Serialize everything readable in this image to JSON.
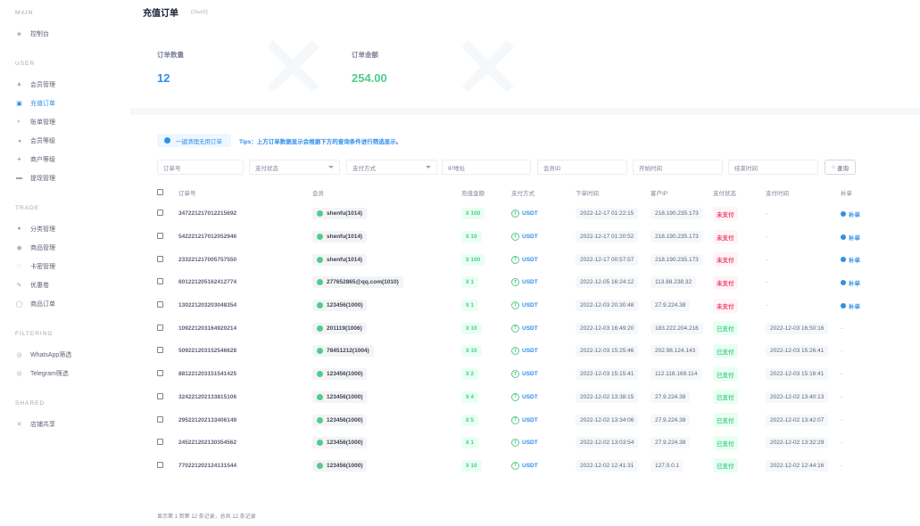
{
  "sidebar": {
    "sections": [
      {
        "title": "MAIN",
        "items": [
          {
            "label": "控制台",
            "icon": "dashboard-icon"
          }
        ]
      },
      {
        "title": "USER",
        "items": [
          {
            "label": "会员管理",
            "icon": "user-icon"
          },
          {
            "label": "充值订单",
            "icon": "wallet-icon",
            "active": true
          },
          {
            "label": "账单管理",
            "icon": "bill-icon"
          },
          {
            "label": "会员等级",
            "icon": "level-icon"
          },
          {
            "label": "商户等级",
            "icon": "merchant-icon"
          },
          {
            "label": "提现管理",
            "icon": "withdraw-icon"
          }
        ]
      },
      {
        "title": "TRADE",
        "items": [
          {
            "label": "分类管理",
            "icon": "category-icon"
          },
          {
            "label": "商品管理",
            "icon": "product-icon"
          },
          {
            "label": "卡密管理",
            "icon": "card-icon"
          },
          {
            "label": "优惠卷",
            "icon": "coupon-icon"
          },
          {
            "label": "商品订单",
            "icon": "order-icon"
          }
        ]
      },
      {
        "title": "FILTERING",
        "items": [
          {
            "label": "WhatsApp筛选",
            "icon": "filter-icon"
          },
          {
            "label": "Telegram筛选",
            "icon": "filter-icon"
          }
        ]
      },
      {
        "title": "SHARED",
        "items": [
          {
            "label": "店铺共享",
            "icon": "share-icon"
          }
        ]
      }
    ]
  },
  "header": {
    "title": "充值订单",
    "subtitle": "(⊙ω⊙)"
  },
  "stats": [
    {
      "label": "订单数量",
      "value": "12",
      "color": "#2f8fea"
    },
    {
      "label": "订单金额",
      "value": "254.00",
      "color": "#50cd89"
    }
  ],
  "toolbar": {
    "clear_button": "一键清理无用订单",
    "tips": "Tips：上方订单数据显示会根据下方的查询条件进行筛选显示。"
  },
  "filters": {
    "order_no": "订单号",
    "pay_status": "支付状态",
    "pay_method": "支付方式",
    "ip": "IP地址",
    "member_id": "会员ID",
    "start_time": "开始时间",
    "end_time": "结束时间",
    "query": "查询"
  },
  "table": {
    "headers": [
      "订单号",
      "会员",
      "充值金额",
      "支付方式",
      "下单时间",
      "客户IP",
      "支付状态",
      "支付时间",
      "补单"
    ],
    "rows": [
      {
        "order": "347221217012215692",
        "member": "shenfu(1014)",
        "amount": "¥ 100",
        "method": "USDT",
        "created": "2022-12-17 01:22:15",
        "ip": "218.190.235.173",
        "status": "未支付",
        "paid": false,
        "paid_time": "-",
        "repair": "补单"
      },
      {
        "order": "542221217012052946",
        "member": "shenfu(1014)",
        "amount": "¥ 10",
        "method": "USDT",
        "created": "2022-12-17 01:20:52",
        "ip": "218.190.235.173",
        "status": "未支付",
        "paid": false,
        "paid_time": "-",
        "repair": "补单"
      },
      {
        "order": "233221217005757550",
        "member": "shenfu(1014)",
        "amount": "¥ 100",
        "method": "USDT",
        "created": "2022-12-17 00:57:57",
        "ip": "218.190.235.173",
        "status": "未支付",
        "paid": false,
        "paid_time": "-",
        "repair": "补单"
      },
      {
        "order": "601221205162412774",
        "member": "277652865@qq.com(1010)",
        "amount": "¥ 1",
        "method": "USDT",
        "created": "2022-12-05 16:24:12",
        "ip": "113.88.238.32",
        "status": "未支付",
        "paid": false,
        "paid_time": "-",
        "repair": "补单"
      },
      {
        "order": "130221203203048354",
        "member": "123456(1000)",
        "amount": "¥ 1",
        "method": "USDT",
        "created": "2022-12-03 20:30:48",
        "ip": "27.9.224.38",
        "status": "未支付",
        "paid": false,
        "paid_time": "-",
        "repair": "补单"
      },
      {
        "order": "109221203164920214",
        "member": "201119(1006)",
        "amount": "¥ 10",
        "method": "USDT",
        "created": "2022-12-03 16:49:20",
        "ip": "183.222.204.216",
        "status": "已支付",
        "paid": true,
        "paid_time": "2022-12-03 16:50:16",
        "repair": "-"
      },
      {
        "order": "509221203152546628",
        "member": "78451212(1004)",
        "amount": "¥ 10",
        "method": "USDT",
        "created": "2022-12-03 15:25:46",
        "ip": "202.98.124.143",
        "status": "已支付",
        "paid": true,
        "paid_time": "2022-12-03 15:26:41",
        "repair": "-"
      },
      {
        "order": "881221203151541425",
        "member": "123456(1000)",
        "amount": "¥ 2",
        "method": "USDT",
        "created": "2022-12-03 15:15:41",
        "ip": "112.118.169.114",
        "status": "已支付",
        "paid": true,
        "paid_time": "2022-12-03 15:16:41",
        "repair": "-"
      },
      {
        "order": "324221202133815106",
        "member": "123456(1000)",
        "amount": "¥ 4",
        "method": "USDT",
        "created": "2022-12-02 13:38:15",
        "ip": "27.9.224.38",
        "status": "已支付",
        "paid": true,
        "paid_time": "2022-12-02 13:40:13",
        "repair": "-"
      },
      {
        "order": "295221202133406149",
        "member": "123456(1000)",
        "amount": "¥ 5",
        "method": "USDT",
        "created": "2022-12-02 13:34:06",
        "ip": "27.9.224.38",
        "status": "已支付",
        "paid": true,
        "paid_time": "2022-12-02 13:42:07",
        "repair": "-"
      },
      {
        "order": "245221202130354562",
        "member": "123456(1000)",
        "amount": "¥ 1",
        "method": "USDT",
        "created": "2022-12-02 13:03:54",
        "ip": "27.9.224.38",
        "status": "已支付",
        "paid": true,
        "paid_time": "2022-12-02 13:32:29",
        "repair": "-"
      },
      {
        "order": "770221202124131544",
        "member": "123456(1000)",
        "amount": "¥ 10",
        "method": "USDT",
        "created": "2022-12-02 12:41:31",
        "ip": "127.0.0.1",
        "status": "已支付",
        "paid": true,
        "paid_time": "2022-12-02 12:44:16",
        "repair": "-"
      }
    ]
  },
  "footer": "显示第 1 到第 12 条记录，总共 12 条记录"
}
